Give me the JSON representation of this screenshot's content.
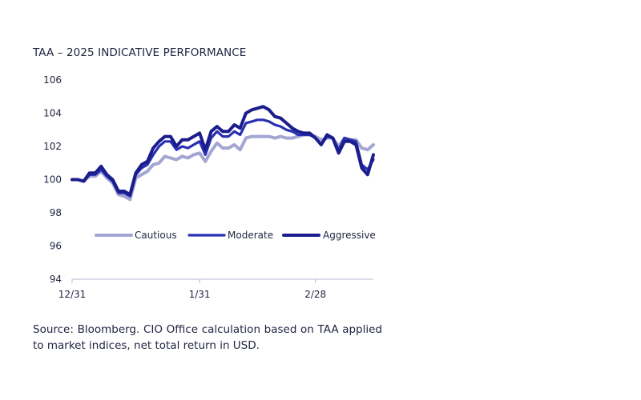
{
  "title": "TAA – 2025 INDICATIVE PERFORMANCE",
  "source": "Source: Bloomberg. CIO Office calculation based on TAA applied to market indices, net total return in USD.",
  "chart_data": {
    "type": "line",
    "title": "TAA – 2025 INDICATIVE PERFORMANCE",
    "xlabel": "",
    "ylabel": "",
    "ylim": [
      94,
      106
    ],
    "yticks": [
      94,
      96,
      98,
      100,
      102,
      104,
      106
    ],
    "xticks": [
      "12/31",
      "1/31",
      "2/28"
    ],
    "legend_position": "bottom",
    "x": [
      "12/31",
      "1/2",
      "1/3",
      "1/6",
      "1/7",
      "1/8",
      "1/9",
      "1/10",
      "1/13",
      "1/14",
      "1/15",
      "1/16",
      "1/17",
      "1/20",
      "1/21",
      "1/22",
      "1/23",
      "1/24",
      "1/27",
      "1/28",
      "1/29",
      "1/30",
      "1/31",
      "2/3",
      "2/4",
      "2/5",
      "2/6",
      "2/7",
      "2/10",
      "2/11",
      "2/12",
      "2/13",
      "2/14",
      "2/17",
      "2/18",
      "2/19",
      "2/20",
      "2/21",
      "2/24",
      "2/25",
      "2/26",
      "2/27",
      "2/28",
      "3/3",
      "3/4",
      "3/5",
      "3/6",
      "3/7",
      "3/10",
      "3/11",
      "3/12",
      "3/13",
      "3/14"
    ],
    "series": [
      {
        "name": "Cautious",
        "color": "#a3a6d2",
        "values": [
          100.0,
          100.0,
          99.9,
          100.2,
          100.2,
          100.5,
          100.1,
          99.8,
          99.1,
          99.0,
          98.8,
          100.1,
          100.3,
          100.5,
          100.9,
          101.0,
          101.4,
          101.3,
          101.2,
          101.4,
          101.3,
          101.5,
          101.6,
          101.1,
          101.7,
          102.2,
          101.9,
          101.9,
          102.1,
          101.8,
          102.5,
          102.6,
          102.6,
          102.6,
          102.6,
          102.5,
          102.6,
          102.5,
          102.5,
          102.6,
          102.7,
          102.7,
          102.6,
          102.4,
          102.5,
          102.5,
          102.0,
          102.5,
          102.4,
          102.4,
          101.9,
          101.8,
          102.1
        ]
      },
      {
        "name": "Moderate",
        "color": "#2a2fb2",
        "values": [
          100.0,
          100.0,
          99.9,
          100.3,
          100.3,
          100.6,
          100.2,
          99.9,
          99.2,
          99.2,
          99.0,
          100.3,
          100.7,
          100.9,
          101.5,
          102.0,
          102.3,
          102.3,
          101.8,
          102.0,
          101.9,
          102.1,
          102.3,
          101.5,
          102.5,
          102.9,
          102.6,
          102.6,
          102.9,
          102.7,
          103.4,
          103.5,
          103.6,
          103.6,
          103.5,
          103.3,
          103.2,
          103.0,
          102.9,
          102.7,
          102.7,
          102.7,
          102.5,
          102.1,
          102.6,
          102.5,
          101.8,
          102.5,
          102.4,
          102.3,
          100.9,
          100.6,
          101.2
        ]
      },
      {
        "name": "Aggressive",
        "color": "#1b1d8c",
        "values": [
          100.0,
          100.0,
          99.9,
          100.4,
          100.4,
          100.8,
          100.3,
          100.0,
          99.3,
          99.3,
          99.1,
          100.4,
          100.9,
          101.1,
          101.9,
          102.3,
          102.6,
          102.6,
          102.0,
          102.4,
          102.4,
          102.6,
          102.8,
          101.8,
          102.9,
          103.2,
          102.9,
          102.9,
          103.3,
          103.1,
          104.0,
          104.2,
          104.3,
          104.4,
          104.2,
          103.8,
          103.7,
          103.4,
          103.1,
          102.9,
          102.8,
          102.8,
          102.5,
          102.1,
          102.7,
          102.5,
          101.6,
          102.3,
          102.3,
          102.1,
          100.7,
          100.3,
          101.5
        ]
      }
    ]
  }
}
